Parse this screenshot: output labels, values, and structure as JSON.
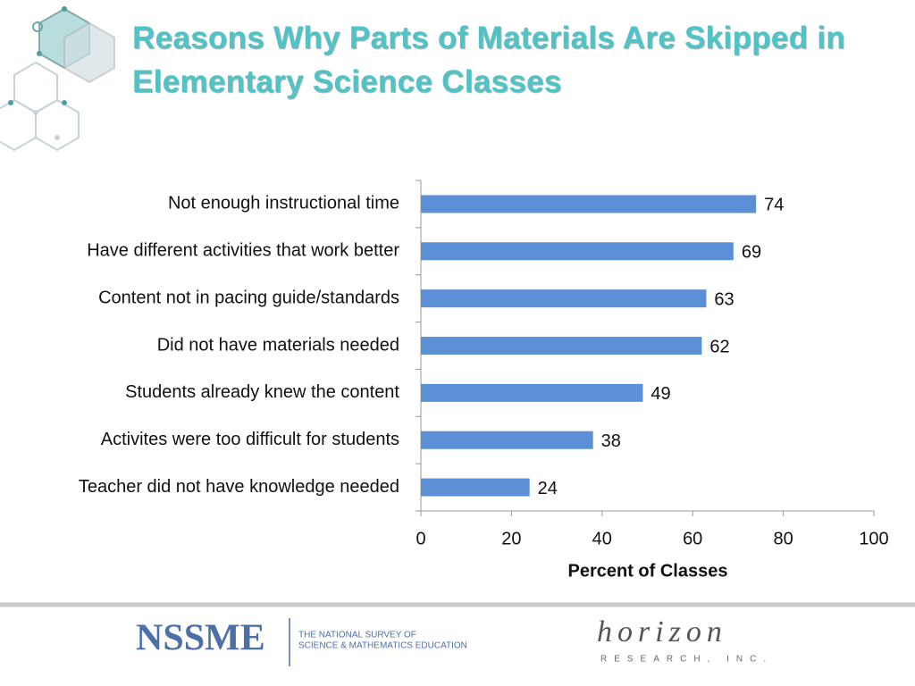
{
  "chart_data": {
    "type": "hbar",
    "title": "Reasons Why Parts of Materials Are Skipped in Elementary Science Classes",
    "categories": [
      "Not enough instructional time",
      "Have different activities that work better",
      "Content not in pacing guide/standards",
      "Did not have materials needed",
      "Students already knew the content",
      "Activites were too difficult for students",
      "Teacher did not have knowledge needed"
    ],
    "values": [
      74,
      69,
      63,
      62,
      49,
      38,
      24
    ],
    "color": "#5b8fd6",
    "xlim": [
      0,
      100
    ],
    "xticks": [
      0,
      20,
      40,
      60,
      80,
      100
    ],
    "xlabel": "Percent of Classes"
  },
  "footer": {
    "logo": "NSSME",
    "tagline": [
      "THE NATIONAL SURVEY OF",
      "SCIENCE & MATHEMATICS EDUCATION"
    ],
    "partner": "horizon",
    "partner_sub": "RESEARCH, INC."
  }
}
